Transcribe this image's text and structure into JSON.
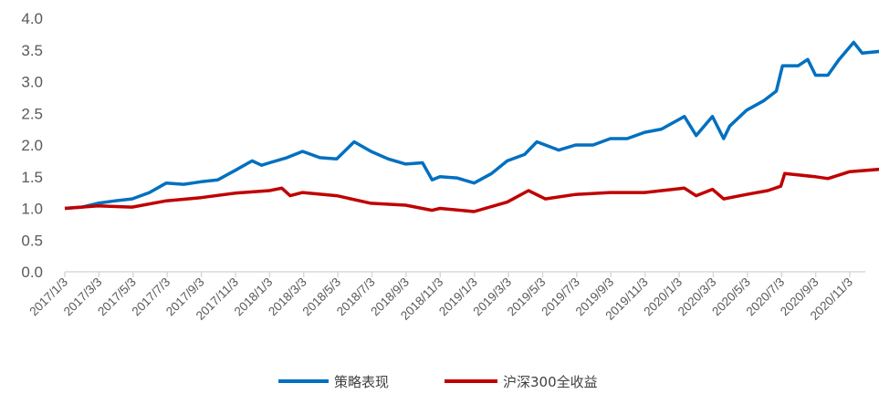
{
  "chart_data": {
    "type": "line",
    "title": "",
    "xlabel": "",
    "ylabel": "",
    "ylim": [
      0,
      4
    ],
    "yticks": [
      "0.0",
      "0.5",
      "1.0",
      "1.5",
      "2.0",
      "2.5",
      "3.0",
      "3.5",
      "4.0"
    ],
    "xticks": [
      "2017/1/3",
      "2017/3/3",
      "2017/5/3",
      "2017/7/3",
      "2017/9/3",
      "2017/11/3",
      "2018/1/3",
      "2018/3/3",
      "2018/5/3",
      "2018/7/3",
      "2018/9/3",
      "2018/11/3",
      "2019/1/3",
      "2019/3/3",
      "2019/5/3",
      "2019/7/3",
      "2019/9/3",
      "2019/11/3",
      "2020/1/3",
      "2020/3/3",
      "2020/5/3",
      "2020/7/3",
      "2020/9/3",
      "2020/11/3"
    ],
    "grid": false,
    "legend_position": "bottom",
    "series": [
      {
        "name": "策略表现",
        "color": "#0070C0",
        "points": [
          [
            "2017-01-03",
            1.0
          ],
          [
            "2017-02-03",
            1.02
          ],
          [
            "2017-03-03",
            1.08
          ],
          [
            "2017-04-03",
            1.12
          ],
          [
            "2017-05-03",
            1.15
          ],
          [
            "2017-06-03",
            1.25
          ],
          [
            "2017-07-03",
            1.4
          ],
          [
            "2017-08-03",
            1.38
          ],
          [
            "2017-09-03",
            1.42
          ],
          [
            "2017-10-03",
            1.45
          ],
          [
            "2017-11-03",
            1.6
          ],
          [
            "2017-12-03",
            1.75
          ],
          [
            "2017-12-20",
            1.68
          ],
          [
            "2018-01-03",
            1.72
          ],
          [
            "2018-02-03",
            1.8
          ],
          [
            "2018-03-03",
            1.9
          ],
          [
            "2018-04-03",
            1.8
          ],
          [
            "2018-05-03",
            1.78
          ],
          [
            "2018-06-03",
            2.05
          ],
          [
            "2018-07-03",
            1.9
          ],
          [
            "2018-08-03",
            1.78
          ],
          [
            "2018-09-03",
            1.7
          ],
          [
            "2018-10-03",
            1.72
          ],
          [
            "2018-10-20",
            1.45
          ],
          [
            "2018-11-03",
            1.5
          ],
          [
            "2018-12-03",
            1.48
          ],
          [
            "2019-01-03",
            1.4
          ],
          [
            "2019-02-03",
            1.55
          ],
          [
            "2019-03-03",
            1.75
          ],
          [
            "2019-04-03",
            1.85
          ],
          [
            "2019-04-25",
            2.05
          ],
          [
            "2019-06-03",
            1.92
          ],
          [
            "2019-07-03",
            2.0
          ],
          [
            "2019-08-03",
            2.0
          ],
          [
            "2019-09-03",
            2.1
          ],
          [
            "2019-10-03",
            2.1
          ],
          [
            "2019-11-03",
            2.2
          ],
          [
            "2019-12-03",
            2.25
          ],
          [
            "2020-01-13",
            2.45
          ],
          [
            "2020-02-03",
            2.15
          ],
          [
            "2020-03-03",
            2.45
          ],
          [
            "2020-03-23",
            2.1
          ],
          [
            "2020-04-03",
            2.3
          ],
          [
            "2020-05-03",
            2.55
          ],
          [
            "2020-06-03",
            2.7
          ],
          [
            "2020-06-25",
            2.85
          ],
          [
            "2020-07-06",
            3.25
          ],
          [
            "2020-08-03",
            3.25
          ],
          [
            "2020-08-20",
            3.35
          ],
          [
            "2020-09-03",
            3.1
          ],
          [
            "2020-09-25",
            3.1
          ],
          [
            "2020-10-15",
            3.35
          ],
          [
            "2020-11-10",
            3.62
          ],
          [
            "2020-11-25",
            3.45
          ],
          [
            "2020-12-31",
            3.48
          ]
        ]
      },
      {
        "name": "沪深300全收益",
        "color": "#C00000",
        "points": [
          [
            "2017-01-03",
            1.0
          ],
          [
            "2017-03-03",
            1.04
          ],
          [
            "2017-05-03",
            1.02
          ],
          [
            "2017-07-03",
            1.12
          ],
          [
            "2017-09-03",
            1.17
          ],
          [
            "2017-11-03",
            1.24
          ],
          [
            "2018-01-03",
            1.28
          ],
          [
            "2018-01-25",
            1.32
          ],
          [
            "2018-02-09",
            1.2
          ],
          [
            "2018-03-03",
            1.25
          ],
          [
            "2018-05-03",
            1.2
          ],
          [
            "2018-07-03",
            1.08
          ],
          [
            "2018-09-03",
            1.05
          ],
          [
            "2018-10-20",
            0.97
          ],
          [
            "2018-11-03",
            1.0
          ],
          [
            "2019-01-03",
            0.95
          ],
          [
            "2019-03-03",
            1.1
          ],
          [
            "2019-04-10",
            1.28
          ],
          [
            "2019-05-10",
            1.15
          ],
          [
            "2019-07-03",
            1.22
          ],
          [
            "2019-09-03",
            1.25
          ],
          [
            "2019-11-03",
            1.25
          ],
          [
            "2020-01-13",
            1.32
          ],
          [
            "2020-02-03",
            1.2
          ],
          [
            "2020-03-03",
            1.3
          ],
          [
            "2020-03-23",
            1.15
          ],
          [
            "2020-05-03",
            1.22
          ],
          [
            "2020-06-10",
            1.28
          ],
          [
            "2020-07-03",
            1.35
          ],
          [
            "2020-07-10",
            1.55
          ],
          [
            "2020-09-03",
            1.5
          ],
          [
            "2020-09-25",
            1.47
          ],
          [
            "2020-11-03",
            1.58
          ],
          [
            "2020-12-31",
            1.62
          ]
        ]
      }
    ]
  }
}
